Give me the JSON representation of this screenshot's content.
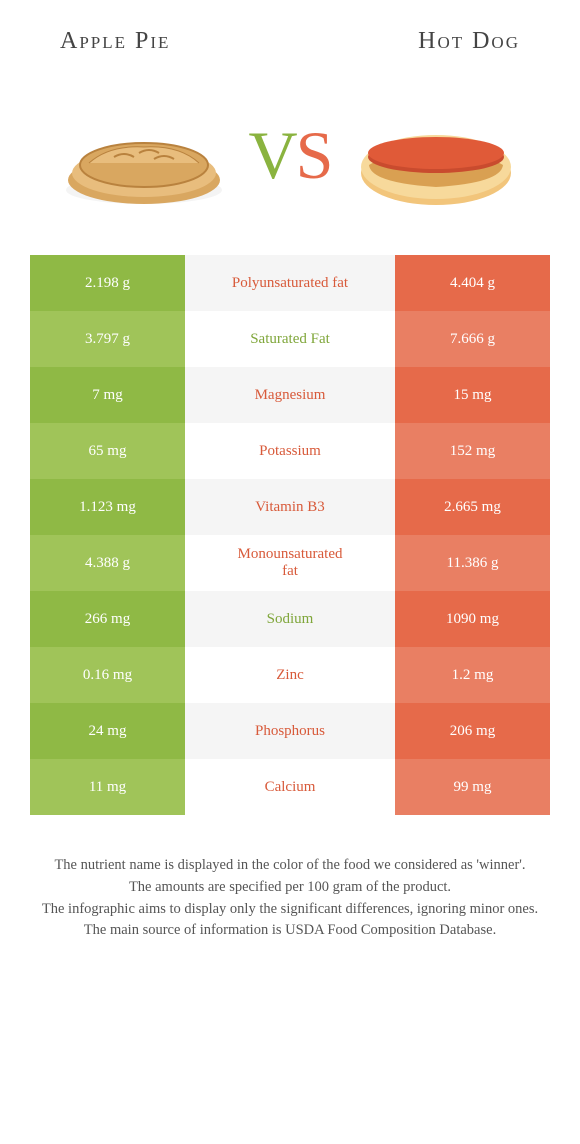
{
  "header": {
    "left_title": "Apple Pie",
    "right_title": "Hot Dog"
  },
  "vs": {
    "v": "V",
    "s": "S"
  },
  "colors": {
    "left": [
      "#8fb945",
      "#a0c459"
    ],
    "mid": [
      "#f5f5f5",
      "#ffffff"
    ],
    "right": [
      "#e66a4a",
      "#e97f63"
    ],
    "nutrient_left_win": "#7fa63a",
    "nutrient_right_win": "#d85a3a",
    "footer_text": "#555555",
    "value_text": "#ffffff",
    "pie_crust": "#d9a760",
    "pie_crust_edge": "#b9823e",
    "pie_plate": "#f4f4f4",
    "bun": "#f2c57b",
    "bun_shadow": "#d9a052",
    "sausage": "#c94b2e"
  },
  "food_images": {
    "left_alt": "apple pie illustration",
    "right_alt": "hot dog illustration"
  },
  "rows": [
    {
      "nutrient": "Polyunsaturated fat",
      "left": "2.198 g",
      "right": "4.404 g",
      "winner": "right"
    },
    {
      "nutrient": "Saturated Fat",
      "left": "3.797 g",
      "right": "7.666 g",
      "winner": "left"
    },
    {
      "nutrient": "Magnesium",
      "left": "7 mg",
      "right": "15 mg",
      "winner": "right"
    },
    {
      "nutrient": "Potassium",
      "left": "65 mg",
      "right": "152 mg",
      "winner": "right"
    },
    {
      "nutrient": "Vitamin B3",
      "left": "1.123 mg",
      "right": "2.665 mg",
      "winner": "right"
    },
    {
      "nutrient": "Monounsaturated\nfat",
      "left": "4.388 g",
      "right": "11.386 g",
      "winner": "right"
    },
    {
      "nutrient": "Sodium",
      "left": "266 mg",
      "right": "1090 mg",
      "winner": "left"
    },
    {
      "nutrient": "Zinc",
      "left": "0.16 mg",
      "right": "1.2 mg",
      "winner": "right"
    },
    {
      "nutrient": "Phosphorus",
      "left": "24 mg",
      "right": "206 mg",
      "winner": "right"
    },
    {
      "nutrient": "Calcium",
      "left": "11 mg",
      "right": "99 mg",
      "winner": "right"
    }
  ],
  "footer": {
    "line1": "The nutrient name is displayed in the color of the food we considered as 'winner'.",
    "line2": "The amounts are specified per 100 gram of the product.",
    "line3": "The infographic aims to display only the significant differences, ignoring minor ones.",
    "line4": "The main source of information is USDA Food Composition Database."
  }
}
